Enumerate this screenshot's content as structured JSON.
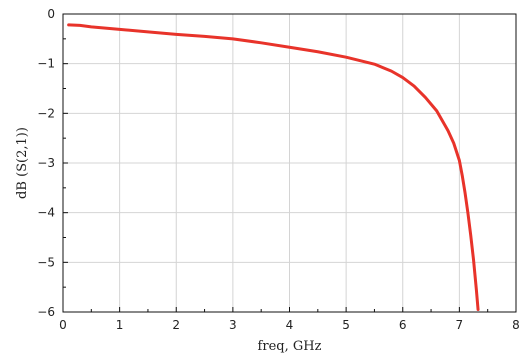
{
  "chart_data": {
    "type": "line",
    "xlabel": "freq, GHz",
    "ylabel": "dB (S(2,1))",
    "xlim": [
      0,
      8
    ],
    "ylim": [
      -6,
      0
    ],
    "xticks": [
      0,
      1,
      2,
      3,
      4,
      5,
      6,
      7,
      8
    ],
    "yticks": [
      0,
      -1,
      -2,
      -3,
      -4,
      -5,
      -6
    ],
    "grid": true,
    "series": [
      {
        "color": "#e8332a",
        "x": [
          0.1,
          0.3,
          0.5,
          1.0,
          1.5,
          2.0,
          2.5,
          3.0,
          3.5,
          4.0,
          4.5,
          5.0,
          5.5,
          5.8,
          6.0,
          6.2,
          6.4,
          6.6,
          6.8,
          6.9,
          7.0,
          7.05,
          7.1,
          7.15,
          7.2,
          7.25,
          7.3,
          7.33
        ],
        "y": [
          -0.22,
          -0.23,
          -0.26,
          -0.31,
          -0.36,
          -0.41,
          -0.45,
          -0.5,
          -0.58,
          -0.67,
          -0.76,
          -0.87,
          -1.01,
          -1.15,
          -1.28,
          -1.45,
          -1.68,
          -1.95,
          -2.35,
          -2.6,
          -2.95,
          -3.25,
          -3.6,
          -4.0,
          -4.45,
          -4.95,
          -5.55,
          -5.95
        ]
      }
    ]
  }
}
